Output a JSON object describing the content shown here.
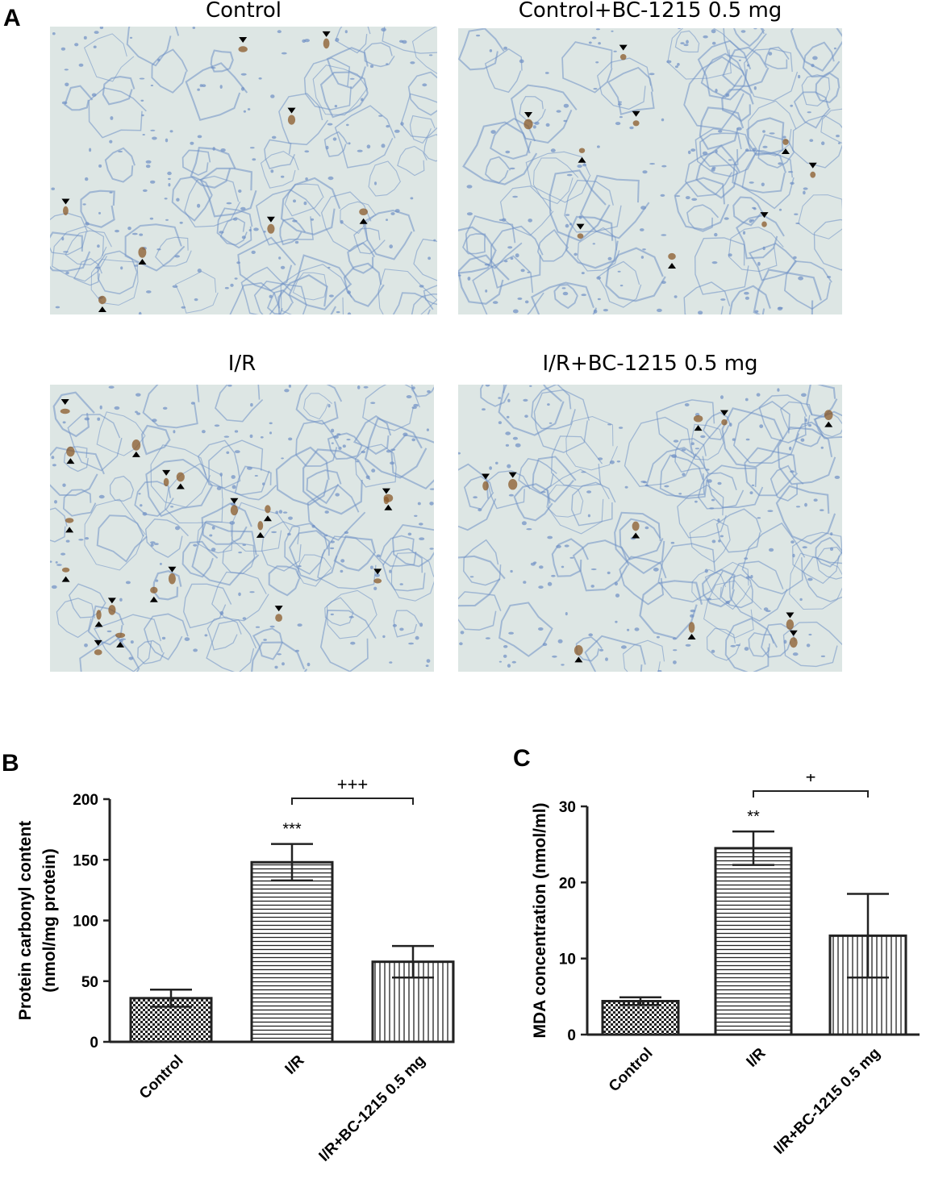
{
  "panels": {
    "a_letter": "A",
    "b_letter": "B",
    "c_letter": "C"
  },
  "micrographs": [
    {
      "title": "Control",
      "stain_level": 0.2
    },
    {
      "title": "Control+BC-1215 0.5 mg",
      "stain_level": 0.25
    },
    {
      "title": "I/R",
      "stain_level": 0.9
    },
    {
      "title": "I/R+BC-1215 0.5 mg",
      "stain_level": 0.35
    }
  ],
  "colors": {
    "tissue_background": "#dde6e4",
    "tissue_cells": "#6e8fc4",
    "stain_brown": "#8a5a2a",
    "marker": "#000000"
  },
  "chart_data": [
    {
      "type": "bar",
      "panel": "B",
      "categories": [
        "Control",
        "I/R",
        "I/R+BC-1215 0.5 mg"
      ],
      "values": [
        36,
        148,
        66
      ],
      "errors": [
        7,
        15,
        13
      ],
      "ylabel": "Protein carbonyl content\n(nmol/mg protein)",
      "ylim": [
        0,
        200
      ],
      "yticks": [
        "0",
        "50",
        "100",
        "150",
        "200"
      ],
      "patterns": [
        "checker",
        "horizontal",
        "vertical"
      ],
      "annotations": {
        "star": "***",
        "comparison": "+++"
      }
    },
    {
      "type": "bar",
      "panel": "C",
      "categories": [
        "Control",
        "I/R",
        "I/R+BC-1215 0.5 mg"
      ],
      "values": [
        4.4,
        24.5,
        13
      ],
      "errors": [
        0.5,
        2.2,
        5.5
      ],
      "ylabel": "MDA concentration (nmol/ml)",
      "ylim": [
        0,
        30
      ],
      "yticks": [
        "0",
        "10",
        "20",
        "30"
      ],
      "patterns": [
        "checker",
        "horizontal",
        "vertical"
      ],
      "annotations": {
        "star": "**",
        "comparison": "+"
      }
    }
  ]
}
